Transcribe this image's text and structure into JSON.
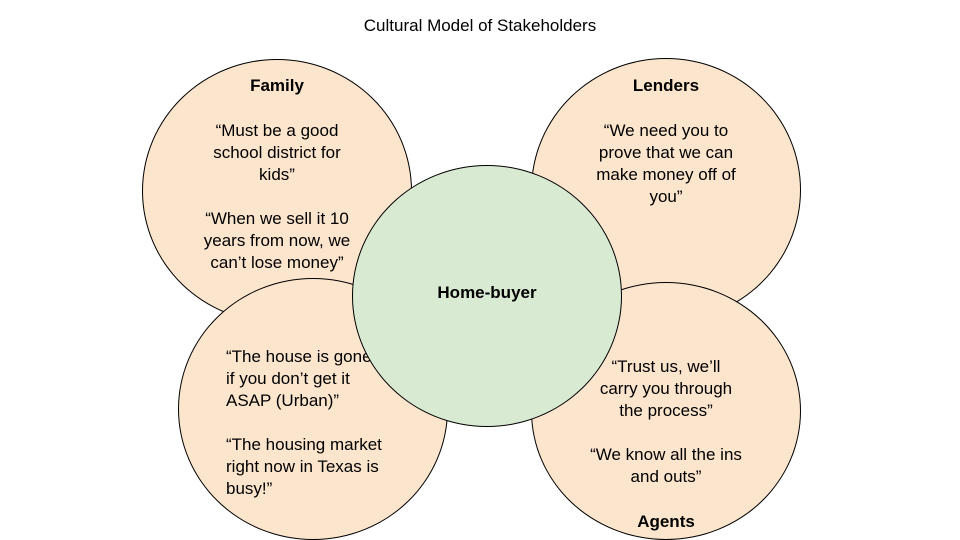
{
  "title": "Cultural Model of Stakeholders",
  "colors": {
    "stakeholder_fill": "#fce5cd",
    "center_fill": "#d9ead3",
    "outline": "#000000"
  },
  "center": {
    "label": "Home-buyer"
  },
  "family": {
    "label": "Family",
    "quote1": [
      "“Must be a good",
      "school district for",
      "kids”"
    ],
    "quote2": [
      "“When we sell it 10",
      "years from now, we",
      "can’t lose money”"
    ]
  },
  "lenders": {
    "label": "Lenders",
    "quote1": [
      "“We need you to",
      "prove that we can",
      "make money off of",
      "you”"
    ]
  },
  "urban": {
    "quote1": [
      "“The house is gone",
      "if you don’t get it",
      "ASAP (Urban)”"
    ],
    "quote2": [
      "“The housing market",
      "right now in Texas is",
      "busy!”"
    ]
  },
  "agents": {
    "label": "Agents",
    "quote1": [
      "“Trust us, we’ll",
      "carry you through",
      "the process”"
    ],
    "quote2": [
      "“We know all the ins",
      "and outs”"
    ]
  }
}
